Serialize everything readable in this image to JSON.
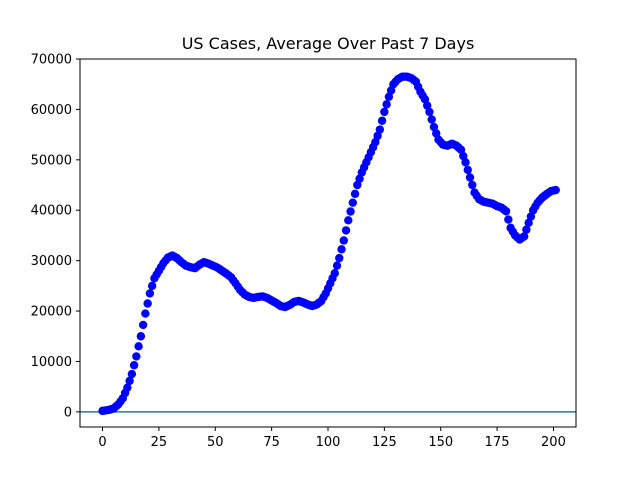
{
  "chart_data": {
    "type": "scatter",
    "title": "US Cases, Average Over Past 7 Days",
    "xlabel": "",
    "ylabel": "",
    "xlim": [
      -10,
      210
    ],
    "ylim": [
      -3000,
      70000
    ],
    "xticks": [
      0,
      25,
      50,
      75,
      100,
      125,
      150,
      175,
      200
    ],
    "yticks": [
      0,
      10000,
      20000,
      30000,
      40000,
      50000,
      60000,
      70000
    ],
    "grid": false,
    "legend": "none",
    "point_color": "#0000ff",
    "baseline": {
      "y": 0,
      "color": "#1f77b4"
    },
    "anchors": [
      [
        0,
        200
      ],
      [
        3,
        400
      ],
      [
        5,
        700
      ],
      [
        7,
        1500
      ],
      [
        9,
        2700
      ],
      [
        11,
        4800
      ],
      [
        13,
        7500
      ],
      [
        15,
        11000
      ],
      [
        17,
        15000
      ],
      [
        19,
        19500
      ],
      [
        21,
        23500
      ],
      [
        23,
        26500
      ],
      [
        25,
        28000
      ],
      [
        27,
        29500
      ],
      [
        29,
        30600
      ],
      [
        31,
        31000
      ],
      [
        33,
        30500
      ],
      [
        35,
        29700
      ],
      [
        37,
        29000
      ],
      [
        39,
        28700
      ],
      [
        41,
        28500
      ],
      [
        43,
        29200
      ],
      [
        45,
        29700
      ],
      [
        47,
        29400
      ],
      [
        49,
        29000
      ],
      [
        51,
        28600
      ],
      [
        53,
        28000
      ],
      [
        55,
        27400
      ],
      [
        57,
        26700
      ],
      [
        59,
        25500
      ],
      [
        61,
        24200
      ],
      [
        63,
        23300
      ],
      [
        65,
        22800
      ],
      [
        67,
        22600
      ],
      [
        69,
        22800
      ],
      [
        71,
        22900
      ],
      [
        73,
        22600
      ],
      [
        75,
        22100
      ],
      [
        77,
        21600
      ],
      [
        79,
        21000
      ],
      [
        81,
        20800
      ],
      [
        83,
        21200
      ],
      [
        85,
        21800
      ],
      [
        87,
        22000
      ],
      [
        89,
        21700
      ],
      [
        91,
        21300
      ],
      [
        93,
        21000
      ],
      [
        95,
        21300
      ],
      [
        97,
        22000
      ],
      [
        99,
        23500
      ],
      [
        101,
        25500
      ],
      [
        103,
        27500
      ],
      [
        105,
        30500
      ],
      [
        107,
        34000
      ],
      [
        109,
        38000
      ],
      [
        111,
        41500
      ],
      [
        113,
        45000
      ],
      [
        115,
        47500
      ],
      [
        117,
        49500
      ],
      [
        119,
        51500
      ],
      [
        121,
        53500
      ],
      [
        123,
        56000
      ],
      [
        125,
        59500
      ],
      [
        127,
        62500
      ],
      [
        129,
        65000
      ],
      [
        131,
        66000
      ],
      [
        133,
        66500
      ],
      [
        135,
        66500
      ],
      [
        137,
        66200
      ],
      [
        139,
        65500
      ],
      [
        141,
        63500
      ],
      [
        143,
        62000
      ],
      [
        145,
        59500
      ],
      [
        147,
        56500
      ],
      [
        149,
        54000
      ],
      [
        151,
        53000
      ],
      [
        153,
        52800
      ],
      [
        155,
        53200
      ],
      [
        157,
        52800
      ],
      [
        159,
        52000
      ],
      [
        161,
        49500
      ],
      [
        163,
        46500
      ],
      [
        165,
        43500
      ],
      [
        167,
        42200
      ],
      [
        169,
        41700
      ],
      [
        171,
        41500
      ],
      [
        173,
        41300
      ],
      [
        175,
        40800
      ],
      [
        177,
        40500
      ],
      [
        179,
        39800
      ],
      [
        181,
        36500
      ],
      [
        183,
        35000
      ],
      [
        185,
        34200
      ],
      [
        187,
        34800
      ],
      [
        189,
        37500
      ],
      [
        191,
        40000
      ],
      [
        193,
        41500
      ],
      [
        195,
        42500
      ],
      [
        197,
        43200
      ],
      [
        199,
        43800
      ],
      [
        201,
        44000
      ]
    ]
  }
}
